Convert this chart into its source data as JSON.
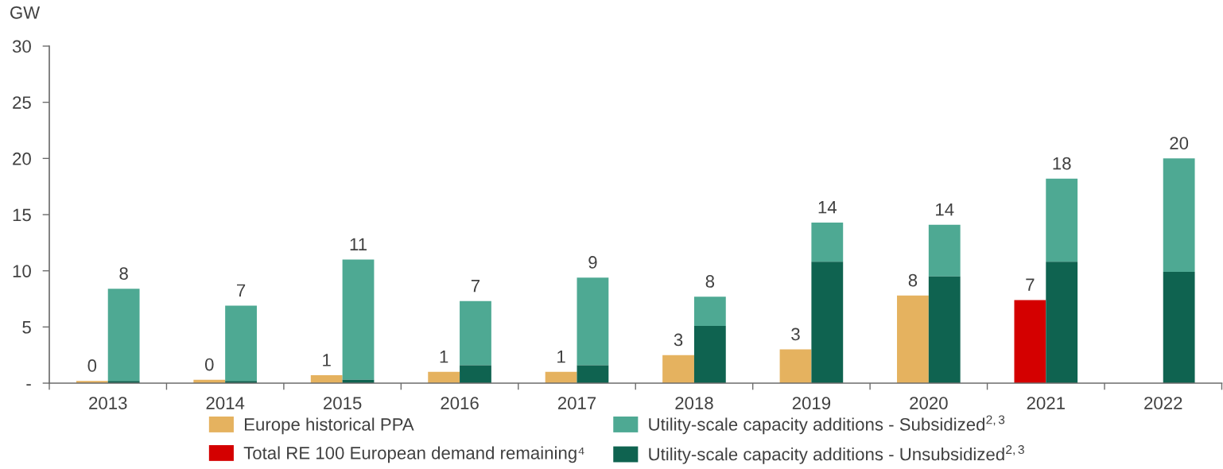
{
  "chart_data": {
    "type": "bar",
    "ylabel": "GW",
    "categories": [
      "2013",
      "2014",
      "2015",
      "2016",
      "2017",
      "2018",
      "2019",
      "2020",
      "2021",
      "2022"
    ],
    "series": [
      {
        "name": "Europe historical PPA",
        "color": "#e5b25f",
        "values": [
          0.2,
          0.3,
          0.7,
          1.0,
          1.0,
          2.5,
          3.0,
          7.8,
          null,
          null
        ],
        "value_labels": [
          "0",
          "0",
          "1",
          "1",
          "1",
          "3",
          "3",
          "8",
          null,
          null
        ]
      },
      {
        "name": "Total RE 100 European demand remaining⁴",
        "color": "#d40000",
        "values": [
          null,
          null,
          null,
          null,
          null,
          null,
          null,
          null,
          7.4,
          null
        ],
        "value_labels": [
          null,
          null,
          null,
          null,
          null,
          null,
          null,
          null,
          "7",
          null
        ]
      },
      {
        "name": "Utility-scale capacity additions - Subsidized$^{2,3}$",
        "color": "#4ea993",
        "values": [
          8.2,
          6.7,
          10.7,
          5.7,
          7.8,
          2.6,
          3.5,
          4.6,
          7.4,
          10.1
        ],
        "base": [
          0.2,
          0.2,
          0.3,
          1.6,
          1.6,
          5.1,
          10.8,
          9.5,
          10.8,
          9.9
        ],
        "value_labels": [
          "8",
          "7",
          "11",
          "7",
          "9",
          "8",
          "14",
          "14",
          "18",
          "20"
        ]
      },
      {
        "name": "Utility-scale capacity additions - Unsubsidized$^{2,3}$",
        "color": "#0f6350",
        "values": [
          0.2,
          0.2,
          0.3,
          1.6,
          1.6,
          5.1,
          10.8,
          9.5,
          10.8,
          9.9
        ]
      }
    ],
    "ylim": [
      0,
      30
    ],
    "yticks": [
      {
        "value": 0,
        "label": "-"
      },
      5,
      10,
      15,
      20,
      25,
      30
    ],
    "legend": "bottom"
  }
}
